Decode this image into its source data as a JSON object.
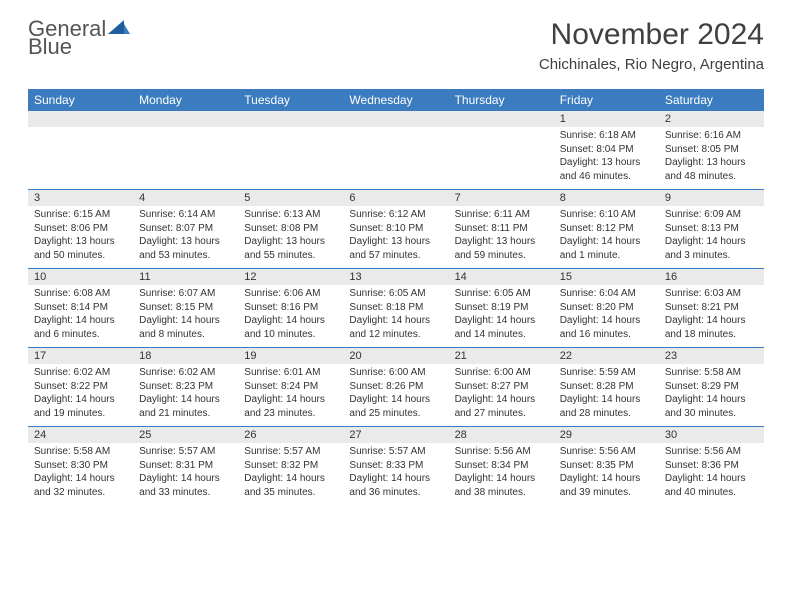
{
  "logo": {
    "word1": "General",
    "word2": "Blue"
  },
  "title": "November 2024",
  "location": "Chichinales, Rio Negro, Argentina",
  "colors": {
    "header_bg": "#3b7bbf",
    "header_text": "#ffffff",
    "daynum_bg": "#eaeaea",
    "week_divider": "#3b7bbf",
    "page_bg": "#ffffff",
    "text": "#333333",
    "logo_gray": "#555555",
    "logo_blue": "#3b7bbf"
  },
  "day_names": [
    "Sunday",
    "Monday",
    "Tuesday",
    "Wednesday",
    "Thursday",
    "Friday",
    "Saturday"
  ],
  "weeks": [
    [
      {
        "n": "",
        "sr": "",
        "ss": "",
        "dl": ""
      },
      {
        "n": "",
        "sr": "",
        "ss": "",
        "dl": ""
      },
      {
        "n": "",
        "sr": "",
        "ss": "",
        "dl": ""
      },
      {
        "n": "",
        "sr": "",
        "ss": "",
        "dl": ""
      },
      {
        "n": "",
        "sr": "",
        "ss": "",
        "dl": ""
      },
      {
        "n": "1",
        "sr": "Sunrise: 6:18 AM",
        "ss": "Sunset: 8:04 PM",
        "dl": "Daylight: 13 hours and 46 minutes."
      },
      {
        "n": "2",
        "sr": "Sunrise: 6:16 AM",
        "ss": "Sunset: 8:05 PM",
        "dl": "Daylight: 13 hours and 48 minutes."
      }
    ],
    [
      {
        "n": "3",
        "sr": "Sunrise: 6:15 AM",
        "ss": "Sunset: 8:06 PM",
        "dl": "Daylight: 13 hours and 50 minutes."
      },
      {
        "n": "4",
        "sr": "Sunrise: 6:14 AM",
        "ss": "Sunset: 8:07 PM",
        "dl": "Daylight: 13 hours and 53 minutes."
      },
      {
        "n": "5",
        "sr": "Sunrise: 6:13 AM",
        "ss": "Sunset: 8:08 PM",
        "dl": "Daylight: 13 hours and 55 minutes."
      },
      {
        "n": "6",
        "sr": "Sunrise: 6:12 AM",
        "ss": "Sunset: 8:10 PM",
        "dl": "Daylight: 13 hours and 57 minutes."
      },
      {
        "n": "7",
        "sr": "Sunrise: 6:11 AM",
        "ss": "Sunset: 8:11 PM",
        "dl": "Daylight: 13 hours and 59 minutes."
      },
      {
        "n": "8",
        "sr": "Sunrise: 6:10 AM",
        "ss": "Sunset: 8:12 PM",
        "dl": "Daylight: 14 hours and 1 minute."
      },
      {
        "n": "9",
        "sr": "Sunrise: 6:09 AM",
        "ss": "Sunset: 8:13 PM",
        "dl": "Daylight: 14 hours and 3 minutes."
      }
    ],
    [
      {
        "n": "10",
        "sr": "Sunrise: 6:08 AM",
        "ss": "Sunset: 8:14 PM",
        "dl": "Daylight: 14 hours and 6 minutes."
      },
      {
        "n": "11",
        "sr": "Sunrise: 6:07 AM",
        "ss": "Sunset: 8:15 PM",
        "dl": "Daylight: 14 hours and 8 minutes."
      },
      {
        "n": "12",
        "sr": "Sunrise: 6:06 AM",
        "ss": "Sunset: 8:16 PM",
        "dl": "Daylight: 14 hours and 10 minutes."
      },
      {
        "n": "13",
        "sr": "Sunrise: 6:05 AM",
        "ss": "Sunset: 8:18 PM",
        "dl": "Daylight: 14 hours and 12 minutes."
      },
      {
        "n": "14",
        "sr": "Sunrise: 6:05 AM",
        "ss": "Sunset: 8:19 PM",
        "dl": "Daylight: 14 hours and 14 minutes."
      },
      {
        "n": "15",
        "sr": "Sunrise: 6:04 AM",
        "ss": "Sunset: 8:20 PM",
        "dl": "Daylight: 14 hours and 16 minutes."
      },
      {
        "n": "16",
        "sr": "Sunrise: 6:03 AM",
        "ss": "Sunset: 8:21 PM",
        "dl": "Daylight: 14 hours and 18 minutes."
      }
    ],
    [
      {
        "n": "17",
        "sr": "Sunrise: 6:02 AM",
        "ss": "Sunset: 8:22 PM",
        "dl": "Daylight: 14 hours and 19 minutes."
      },
      {
        "n": "18",
        "sr": "Sunrise: 6:02 AM",
        "ss": "Sunset: 8:23 PM",
        "dl": "Daylight: 14 hours and 21 minutes."
      },
      {
        "n": "19",
        "sr": "Sunrise: 6:01 AM",
        "ss": "Sunset: 8:24 PM",
        "dl": "Daylight: 14 hours and 23 minutes."
      },
      {
        "n": "20",
        "sr": "Sunrise: 6:00 AM",
        "ss": "Sunset: 8:26 PM",
        "dl": "Daylight: 14 hours and 25 minutes."
      },
      {
        "n": "21",
        "sr": "Sunrise: 6:00 AM",
        "ss": "Sunset: 8:27 PM",
        "dl": "Daylight: 14 hours and 27 minutes."
      },
      {
        "n": "22",
        "sr": "Sunrise: 5:59 AM",
        "ss": "Sunset: 8:28 PM",
        "dl": "Daylight: 14 hours and 28 minutes."
      },
      {
        "n": "23",
        "sr": "Sunrise: 5:58 AM",
        "ss": "Sunset: 8:29 PM",
        "dl": "Daylight: 14 hours and 30 minutes."
      }
    ],
    [
      {
        "n": "24",
        "sr": "Sunrise: 5:58 AM",
        "ss": "Sunset: 8:30 PM",
        "dl": "Daylight: 14 hours and 32 minutes."
      },
      {
        "n": "25",
        "sr": "Sunrise: 5:57 AM",
        "ss": "Sunset: 8:31 PM",
        "dl": "Daylight: 14 hours and 33 minutes."
      },
      {
        "n": "26",
        "sr": "Sunrise: 5:57 AM",
        "ss": "Sunset: 8:32 PM",
        "dl": "Daylight: 14 hours and 35 minutes."
      },
      {
        "n": "27",
        "sr": "Sunrise: 5:57 AM",
        "ss": "Sunset: 8:33 PM",
        "dl": "Daylight: 14 hours and 36 minutes."
      },
      {
        "n": "28",
        "sr": "Sunrise: 5:56 AM",
        "ss": "Sunset: 8:34 PM",
        "dl": "Daylight: 14 hours and 38 minutes."
      },
      {
        "n": "29",
        "sr": "Sunrise: 5:56 AM",
        "ss": "Sunset: 8:35 PM",
        "dl": "Daylight: 14 hours and 39 minutes."
      },
      {
        "n": "30",
        "sr": "Sunrise: 5:56 AM",
        "ss": "Sunset: 8:36 PM",
        "dl": "Daylight: 14 hours and 40 minutes."
      }
    ]
  ]
}
